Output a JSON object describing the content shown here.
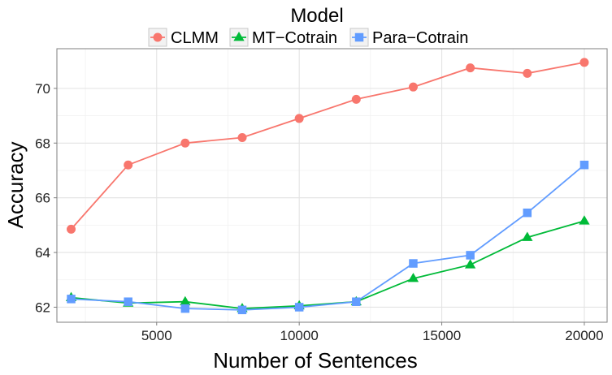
{
  "chart_data": {
    "type": "line",
    "title": "",
    "xlabel": "Number of Sentences",
    "ylabel": "Accuracy",
    "xlim": [
      1500,
      20800
    ],
    "ylim": [
      61.45,
      71.45
    ],
    "xticks": [
      5000,
      10000,
      15000,
      20000
    ],
    "yticks": [
      62,
      64,
      66,
      68,
      70
    ],
    "grid": true,
    "legend": {
      "title": "Model",
      "position": "top"
    },
    "x": [
      2000,
      4000,
      6000,
      8000,
      10000,
      12000,
      14000,
      16000,
      18000,
      20000
    ],
    "series": [
      {
        "name": "CLMM",
        "color": "#F8766D",
        "marker": "circle",
        "values": [
          64.85,
          67.2,
          68.0,
          68.2,
          68.9,
          69.6,
          70.05,
          70.75,
          70.55,
          70.95
        ]
      },
      {
        "name": "MT−Cotrain",
        "color": "#00BA38",
        "marker": "triangle",
        "values": [
          62.35,
          62.15,
          62.2,
          61.95,
          62.05,
          62.2,
          63.05,
          63.55,
          64.55,
          65.15
        ]
      },
      {
        "name": "Para−Cotrain",
        "color": "#619CFF",
        "marker": "square",
        "values": [
          62.3,
          62.2,
          61.95,
          61.9,
          62.0,
          62.2,
          63.6,
          63.9,
          65.45,
          67.2
        ]
      }
    ]
  }
}
